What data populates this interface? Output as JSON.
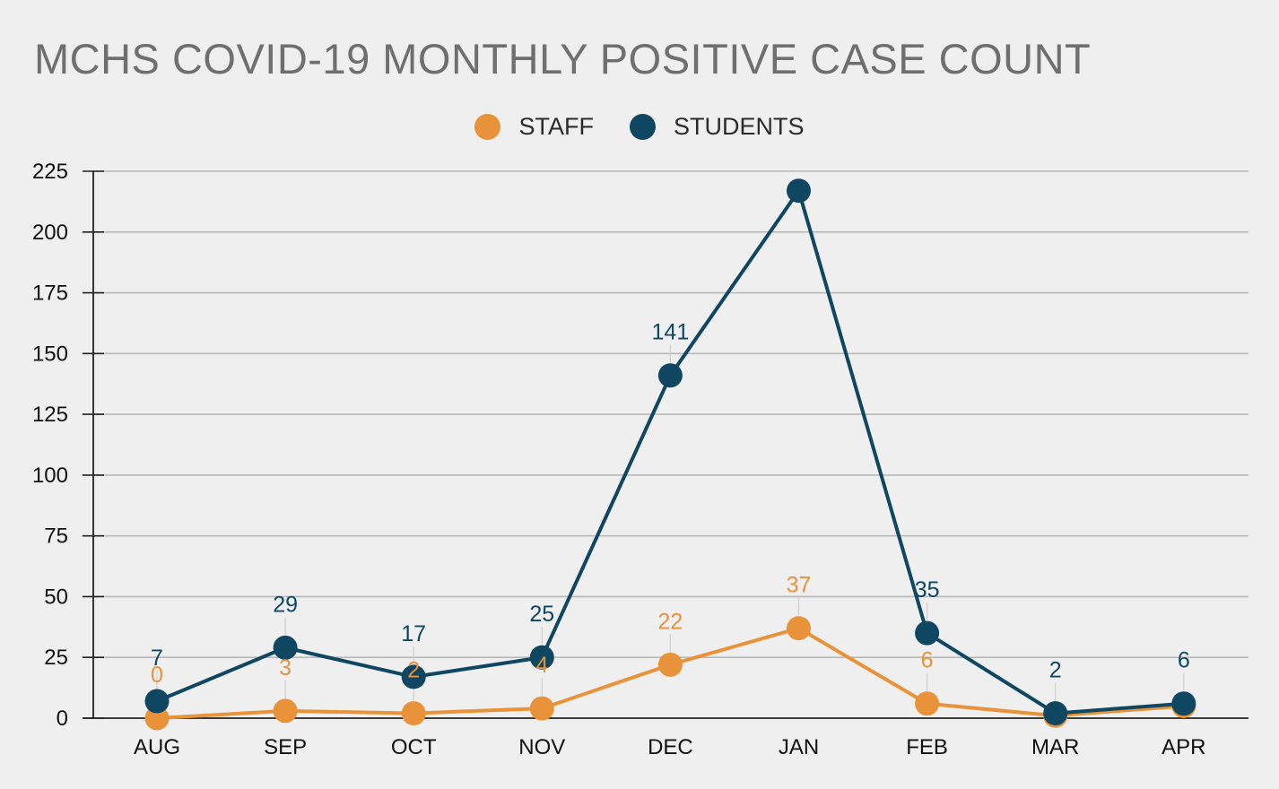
{
  "chart_data": {
    "type": "line",
    "title": "MCHS COVID-19 MONTHLY POSITIVE CASE COUNT",
    "categories": [
      "AUG",
      "SEP",
      "OCT",
      "NOV",
      "DEC",
      "JAN",
      "FEB",
      "MAR",
      "APR"
    ],
    "y_ticks": [
      "0",
      "25",
      "50",
      "75",
      "100",
      "125",
      "150",
      "175",
      "200",
      "225"
    ],
    "ylim": [
      0,
      225
    ],
    "grid": true,
    "legend_position": "top-center",
    "series": [
      {
        "name": "STAFF",
        "color": "#e8923a",
        "values": [
          0,
          3,
          2,
          4,
          22,
          37,
          6,
          1,
          5
        ],
        "labels": [
          "0",
          "3",
          "2",
          "4",
          "22",
          "37",
          "6",
          "",
          ""
        ]
      },
      {
        "name": "STUDENTS",
        "color": "#0f4763",
        "values": [
          7,
          29,
          17,
          25,
          141,
          217,
          35,
          2,
          6
        ],
        "labels": [
          "7",
          "29",
          "17",
          "25",
          "141",
          "",
          "35",
          "2",
          "6"
        ]
      }
    ]
  }
}
